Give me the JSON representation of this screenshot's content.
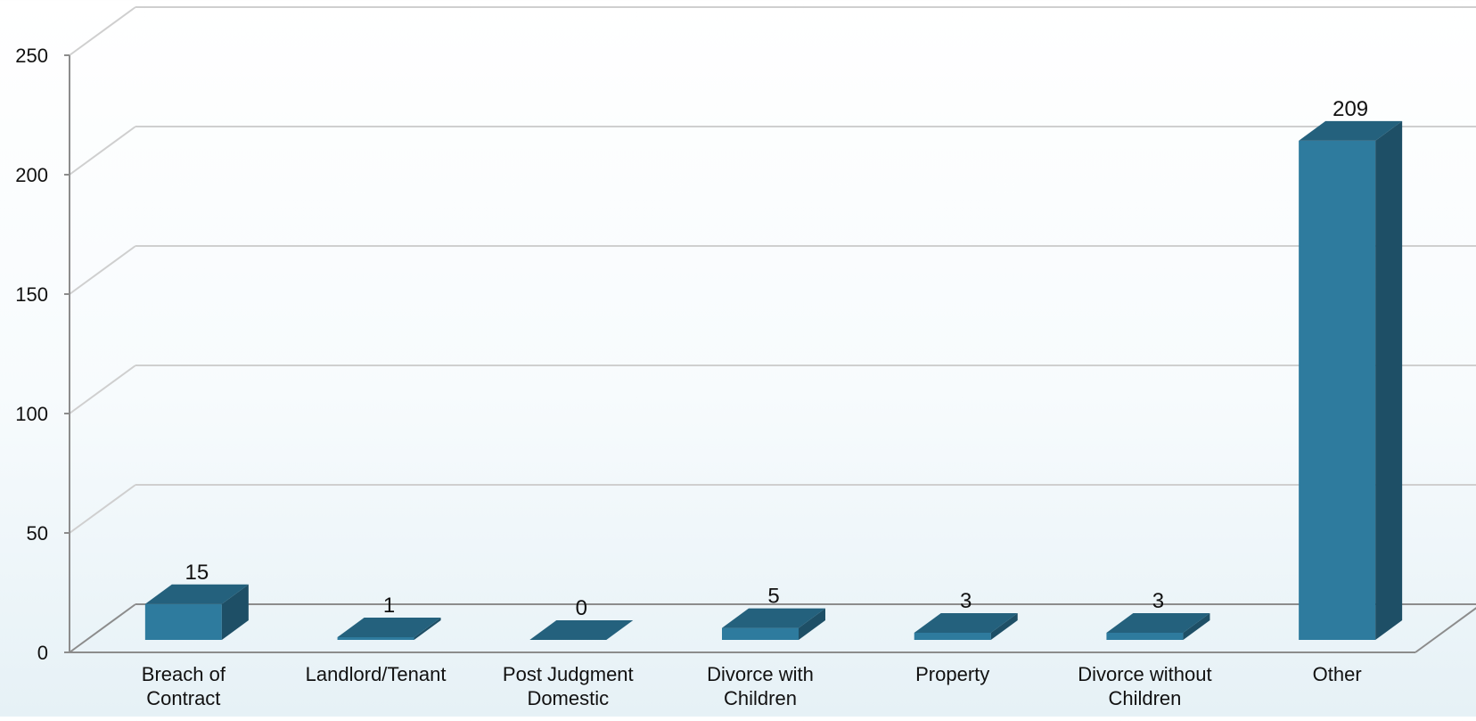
{
  "chart_data": {
    "type": "bar",
    "categories": [
      [
        "Breach of",
        "Contract"
      ],
      [
        "Landlord/Tenant"
      ],
      [
        "Post Judgment",
        "Domestic"
      ],
      [
        "Divorce with",
        "Children"
      ],
      [
        "Property"
      ],
      [
        "Divorce without",
        "Children"
      ],
      [
        "Other"
      ]
    ],
    "values": [
      15,
      1,
      0,
      5,
      3,
      3,
      209
    ],
    "data_labels": [
      "15",
      "1",
      "0",
      "5",
      "3",
      "3",
      "209"
    ],
    "ylim": [
      0,
      250
    ],
    "yticks": [
      0,
      50,
      100,
      150,
      200,
      250
    ],
    "ytick_labels": [
      "0",
      "50",
      "100",
      "150",
      "200",
      "250"
    ],
    "grid": true,
    "legend": "none",
    "three_d": true,
    "colors": {
      "bar_front": "#2e7b9e",
      "bar_top": "#24617d",
      "bar_side": "#1e4f66",
      "grid": "#cfcfcf",
      "axis": "#8c8c8c"
    }
  }
}
